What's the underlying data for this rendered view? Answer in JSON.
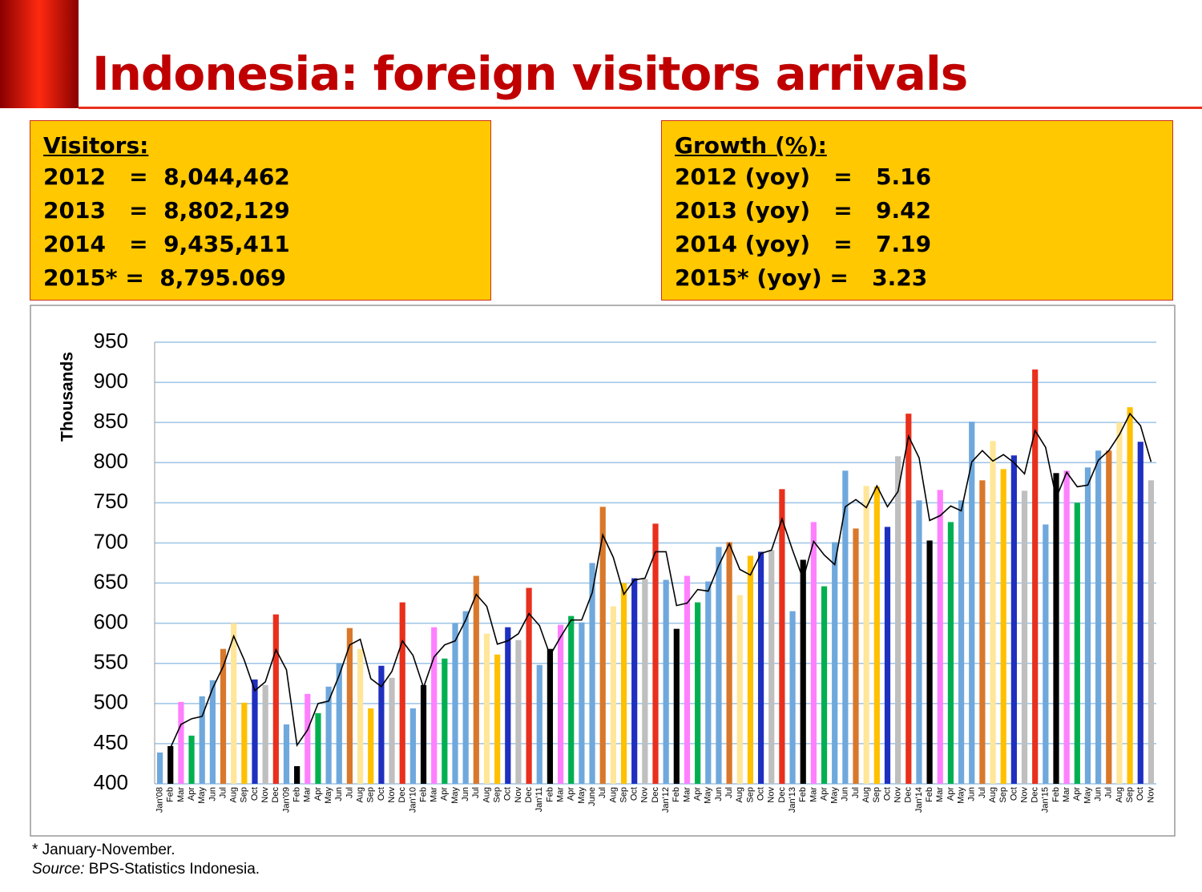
{
  "header": {
    "title": "Indonesia: foreign visitors arrivals"
  },
  "boxes": [
    {
      "heading": "Visitors:",
      "rows": [
        "2012   =  8,044,462",
        "2013   =  8,802,129",
        "2014   =  9,435,411",
        "2015* =  8,795.069"
      ]
    },
    {
      "heading": "Growth (%):",
      "rows": [
        "2012 (yoy)   =   5.16",
        "2013 (yoy)   =   9.42",
        "2014 (yoy)   =   7.19",
        "2015* (yoy) =   3.23"
      ]
    }
  ],
  "chart_data": {
    "type": "bar",
    "y_label": "Thousands",
    "categories": [
      "Jan'08",
      "Feb",
      "Mar",
      "Apr",
      "May",
      "Jun",
      "Jul",
      "Aug",
      "Sep",
      "Oct",
      "Nov",
      "Dec",
      "Jan'09",
      "Feb",
      "Mar",
      "Apr",
      "May",
      "Jun",
      "Jul",
      "Aug",
      "Sep",
      "Oct",
      "Nov",
      "Dec",
      "Jan'10",
      "Feb",
      "Mar",
      "Apr",
      "May",
      "Jun",
      "Jul",
      "Aug",
      "Sep",
      "Oct",
      "Nov",
      "Dec",
      "Jan'11",
      "Feb",
      "Mar",
      "Apr",
      "May",
      "June",
      "Jul",
      "Aug",
      "Sep",
      "Oct",
      "Nov",
      "Dec",
      "Jan'12",
      "Feb",
      "Mar",
      "Apr",
      "May",
      "Jun",
      "Jul",
      "Aug",
      "Sep",
      "Oct",
      "Nov",
      "Dec",
      "Jan'13",
      "Feb",
      "Mar",
      "Apr",
      "May",
      "Jun",
      "Jul",
      "Aug",
      "Sep",
      "Oct",
      "Nov",
      "Dec",
      "Jan'14",
      "Feb",
      "Mar",
      "Apr",
      "May",
      "Jun",
      "Jul",
      "Aug",
      "Sep",
      "Oct",
      "Nov",
      "Dec",
      "Jan'15",
      "Feb",
      "Mar",
      "Apr",
      "May",
      "Jun",
      "Jul",
      "Aug",
      "Sep",
      "Oct",
      "Nov"
    ],
    "series": [
      {
        "type": "bar",
        "colors": [
          "#6fa8dc",
          "#000000",
          "#ff80ff",
          "#00b050",
          "#6fa8dc",
          "#6fa8dc",
          "#d9782b",
          "#ffe699",
          "#ffc000",
          "#1f2fbf",
          "#bfbfbf",
          "#e8301c"
        ],
        "values": [
          439,
          447,
          502,
          460,
          509,
          529,
          568,
          600,
          501,
          530,
          523,
          611,
          474,
          422,
          512,
          488,
          521,
          550,
          594,
          568,
          494,
          547,
          532,
          626,
          494,
          523,
          595,
          556,
          600,
          615,
          659,
          587,
          561,
          595,
          579,
          644,
          548,
          568,
          598,
          609,
          601,
          675,
          745,
          621,
          650,
          656,
          655,
          724,
          654,
          593,
          659,
          626,
          652,
          695,
          701,
          635,
          684,
          689,
          691,
          767,
          615,
          679,
          726,
          646,
          701,
          790,
          718,
          771,
          770,
          720,
          808,
          861,
          753,
          703,
          766,
          726,
          753,
          851,
          778,
          827,
          792,
          809,
          765,
          916,
          723,
          787,
          790,
          750,
          794,
          815,
          815,
          850,
          869,
          826,
          778
        ]
      },
      {
        "type": "line",
        "color": "#000000",
        "values": [
          null,
          445,
          474,
          481,
          484,
          519,
          546,
          584,
          554,
          516,
          527,
          567,
          542,
          448,
          467,
          500,
          503,
          535,
          573,
          580,
          531,
          521,
          540,
          578,
          560,
          520,
          558,
          573,
          578,
          604,
          636,
          621,
          574,
          578,
          587,
          612,
          597,
          560,
          583,
          604,
          604,
          638,
          710,
          682,
          636,
          654,
          656,
          689,
          689,
          622,
          625,
          642,
          640,
          672,
          699,
          667,
          660,
          687,
          691,
          730,
          691,
          655,
          702,
          685,
          673,
          745,
          754,
          744,
          771,
          745,
          764,
          833,
          806,
          728,
          734,
          746,
          740,
          801,
          815,
          802,
          810,
          800,
          786,
          840,
          819,
          756,
          788,
          770,
          772,
          803,
          815,
          835,
          861,
          846,
          801
        ]
      }
    ],
    "ylim": [
      400,
      950
    ],
    "yticks": [
      400,
      450,
      500,
      550,
      600,
      650,
      700,
      750,
      800,
      850,
      900,
      950
    ],
    "grid": true
  },
  "notes": {
    "footnote": "* January-November.",
    "source_label": "Source:",
    "source": "BPS-Statistics Indonesia."
  }
}
